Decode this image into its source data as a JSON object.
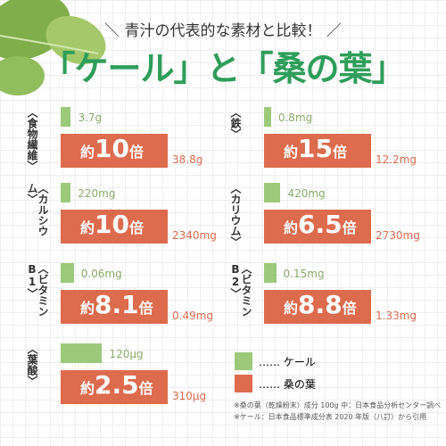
{
  "header": {
    "subtitle": "青汁の代表的な素材と比較！",
    "title": "「ケール」と「桑の葉」"
  },
  "chart_data": {
    "type": "bar",
    "categories": [
      "〈食物繊維〉",
      "〈鉄〉",
      "〈カルシウム〉",
      "〈カリウム〉",
      "〈ビタミンB1〉",
      "〈ビタミンB2〉",
      "〈葉酸〉"
    ],
    "series": [
      {
        "name": "ケール",
        "color": "#9cc97a",
        "values": [
          3.7,
          0.8,
          220,
          420,
          0.06,
          0.15,
          120
        ],
        "value_labels": [
          "3.7g",
          "0.8mg",
          "220mg",
          "420mg",
          "0.06mg",
          "0.15mg",
          "120μg"
        ]
      },
      {
        "name": "桑の葉",
        "color": "#dd6b4d",
        "values": [
          38.8,
          12.2,
          2340,
          2730,
          0.49,
          1.33,
          310
        ],
        "value_labels": [
          "38.8g",
          "12.2mg",
          "2340mg",
          "2730mg",
          "0.49mg",
          "1.33mg",
          "310μg"
        ]
      }
    ],
    "ratios": [
      10,
      15,
      10,
      6.5,
      8.1,
      8.8,
      2.5
    ],
    "ratio_prefix": "約",
    "ratio_suffix": "倍"
  },
  "notes": [
    "※桑の葉（乾燥粉末）成分 100g 中：日本食品分析センター調べ",
    "※ケール：日本食品標準成分表 2020 年版（八訂）から引用"
  ]
}
